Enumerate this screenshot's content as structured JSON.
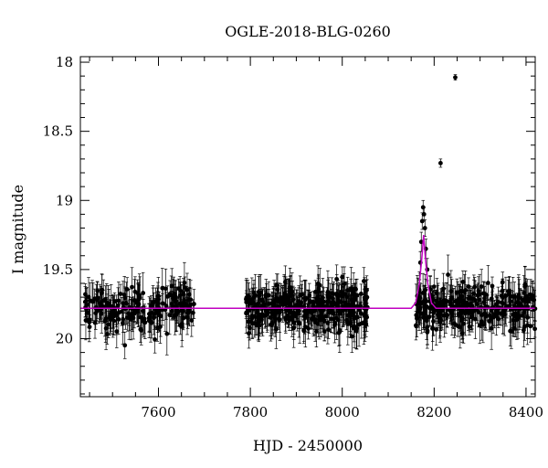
{
  "chart_data": {
    "type": "scatter",
    "title": "OGLE-2018-BLG-0260",
    "xlabel": "HJD - 2450000",
    "ylabel": "I magnitude",
    "xlim": [
      7430,
      8420
    ],
    "ylim": [
      20.42,
      17.96
    ],
    "y_inverted": true,
    "grid": false,
    "x_ticks": [
      7600,
      7800,
      8000,
      8200,
      8400
    ],
    "y_ticks": [
      18,
      18.5,
      19,
      19.5,
      20
    ],
    "x_tick_labels": [
      "7600",
      "7800",
      "8000",
      "8200",
      "8400"
    ],
    "y_tick_labels": [
      "18",
      "18.5",
      "19",
      "19.5",
      "20"
    ],
    "colors": {
      "points": "#000000",
      "model": "#c000c0",
      "frame": "#000000"
    },
    "baseline_magnitude": 19.78,
    "model": {
      "name": "",
      "peak_x": 8177,
      "peak_y": 19.25,
      "baseline_y": 19.78,
      "x": [
        7430,
        8150,
        8160,
        8168,
        8173,
        8177,
        8181,
        8186,
        8194,
        8204,
        8420
      ],
      "y": [
        19.78,
        19.78,
        19.74,
        19.6,
        19.42,
        19.25,
        19.42,
        19.6,
        19.74,
        19.78,
        19.78
      ]
    },
    "segments": [
      {
        "x_start": 7440,
        "x_end": 7680,
        "mean": 19.78,
        "count": 210
      },
      {
        "x_start": 7790,
        "x_end": 8055,
        "mean": 19.78,
        "count": 360
      },
      {
        "x_start": 8160,
        "x_end": 8420,
        "mean": 19.78,
        "count": 300
      }
    ],
    "highlighted_points": [
      {
        "x": 8246,
        "y": 18.11,
        "err": 0.02
      },
      {
        "x": 8214,
        "y": 18.73,
        "err": 0.03
      },
      {
        "x": 8176,
        "y": 19.05,
        "err": 0.05
      },
      {
        "x": 8178,
        "y": 19.1,
        "err": 0.05
      },
      {
        "x": 8174,
        "y": 19.15,
        "err": 0.06
      },
      {
        "x": 8180,
        "y": 19.2,
        "err": 0.06
      },
      {
        "x": 8172,
        "y": 19.3,
        "err": 0.07
      },
      {
        "x": 8182,
        "y": 19.35,
        "err": 0.07
      },
      {
        "x": 8170,
        "y": 19.45,
        "err": 0.08
      },
      {
        "x": 8185,
        "y": 19.5,
        "err": 0.08
      }
    ]
  }
}
